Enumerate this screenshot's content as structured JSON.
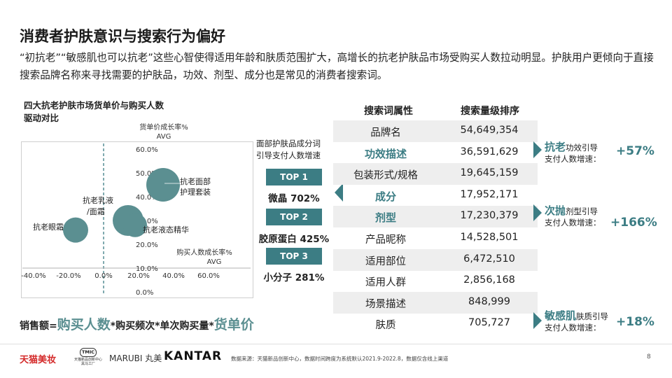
{
  "title": "消费者护肤意识与搜索行为偏好",
  "description": "“初抗老”“敏感肌也可以抗老”这些心智使得适用年龄和肤质范围扩大，高增长的抗老护肤品市场受购买人数拉动明显。护肤用户更倾向于直接搜索品牌名称来寻找需要的护肤品，功效、剂型、成分也是常见的消费者搜索词。",
  "chart_title_lines": [
    "四大抗老护肤市场货单价与购买人数",
    "驱动对比"
  ],
  "chart_data": {
    "type": "scatter",
    "title": "四大抗老护肤市场货单价与购买人数驱动对比",
    "ylabel_lines": [
      "货单价成长率%",
      "AVG"
    ],
    "xlabel_lines": [
      "购买人数成长率%",
      "AVG"
    ],
    "x_ticks": [
      "-40.0%",
      "-20.0%",
      "0.0%",
      "20.0%",
      "40.0%",
      "60.0%"
    ],
    "y_ticks": [
      "60.0%",
      "50.0%",
      "40.0%",
      "30.0%",
      "20.0%",
      "10.0%",
      "0.0%"
    ],
    "xlim": [
      -45,
      62
    ],
    "ylim": [
      0,
      60
    ],
    "x_axis_at_y": 10,
    "y_axis_at_x": 0,
    "grid": false,
    "bubble_color": "#5b8f91",
    "points": [
      {
        "label": "抗老眼霜",
        "x": -16,
        "y": 26,
        "r": 18
      },
      {
        "label": "抗老乳液\n/面霜",
        "x": 14,
        "y": 30,
        "r": 22
      },
      {
        "label": "抗老液态精华",
        "x": 18,
        "y": 28,
        "r": 17
      },
      {
        "label": "抗老面部\n护理套装",
        "x": 34,
        "y": 45,
        "r": 24
      }
    ]
  },
  "formula": {
    "prefix": "销售额=",
    "buyers": "购买人数",
    "mid": "*购买频次*单次购买量*",
    "price": "货单价"
  },
  "side_caption": [
    "面部护肤品成分词",
    "引导支付人数增速"
  ],
  "top_items": [
    {
      "badge": "TOP 1",
      "value": "微晶 702%"
    },
    {
      "badge": "TOP 2",
      "value": "胶原蛋白 425%"
    },
    {
      "badge": "TOP 3",
      "value": "小分子 281%"
    }
  ],
  "table": {
    "headers": [
      "搜索词属性",
      "搜索量级排序"
    ],
    "rows": [
      {
        "attr": "品牌名",
        "volume": "54,649,354",
        "highlight": false
      },
      {
        "attr": "功效描述",
        "volume": "36,591,629",
        "highlight": true
      },
      {
        "attr": "包装形式/规格",
        "volume": "19,645,159",
        "highlight": false
      },
      {
        "attr": "成分",
        "volume": "17,952,171",
        "highlight": true
      },
      {
        "attr": "剂型",
        "volume": "17,230,379",
        "highlight": true
      },
      {
        "attr": "产品昵称",
        "volume": "14,528,501",
        "highlight": false
      },
      {
        "attr": "适用部位",
        "volume": "6,472,510",
        "highlight": false
      },
      {
        "attr": "适用人群",
        "volume": "2,856,168",
        "highlight": false
      },
      {
        "attr": "场景描述",
        "volume": "848,999",
        "highlight": false
      },
      {
        "attr": "肤质",
        "volume": "705,727",
        "highlight": false
      }
    ]
  },
  "callouts": [
    {
      "big": "抗老",
      "small": "功效引导",
      "line2": "支付人数增速：",
      "pct": "+57%"
    },
    {
      "big": "次抛",
      "small": "剂型引导",
      "line2": "支付人数增速：",
      "pct": "+166%"
    },
    {
      "big": "敏感肌",
      "small": "肤质引导",
      "line2": "支付人数增速：",
      "pct": "+18%"
    }
  ],
  "footer": {
    "logo_tmall": "天猫美妆",
    "logo_tmic_top": "TMIC",
    "logo_tmic_line1": "天猫新品创新中心",
    "logo_tmic_line2": "黑马工厂",
    "logo_marubi": "MARUBI 丸美",
    "logo_kantar": "KANTAR",
    "source": "数据来源：天猫新品创新中心，数据时间跨度为系统默认2021.9-2022.8，数据仅含线上渠道",
    "page_number": "8"
  },
  "colors": {
    "accent": "#3c7d84",
    "bubble": "#5b8f91",
    "brand_red": "#d42a2a",
    "row_shade": "#eeeeee"
  }
}
